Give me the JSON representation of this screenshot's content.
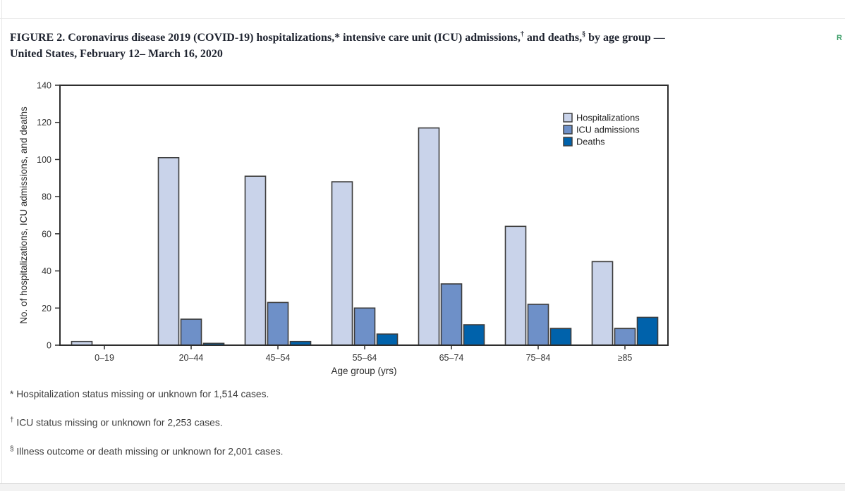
{
  "page": {
    "return_link_text": "R"
  },
  "title": {
    "parts": [
      {
        "t": "FIGURE 2. Coronavirus disease 2019 (COVID-19) hospitalizations,* intensive care unit (ICU) admissions,"
      },
      {
        "t": "†",
        "sup": true
      },
      {
        "t": " and deaths,"
      },
      {
        "t": "§",
        "sup": true
      },
      {
        "t": " by age group — "
      },
      {
        "t": "United States, February 12– March 16, 2020"
      }
    ]
  },
  "chart_data": {
    "type": "bar",
    "categories": [
      "0–19",
      "20–44",
      "45–54",
      "55–64",
      "65–74",
      "75–84",
      "≥85"
    ],
    "series": [
      {
        "name": "Hospitalizations",
        "color": "#c9d3ea",
        "values": [
          2,
          101,
          91,
          88,
          117,
          64,
          45
        ]
      },
      {
        "name": "ICU admissions",
        "color": "#6e90c8",
        "values": [
          0,
          14,
          23,
          20,
          33,
          22,
          9
        ]
      },
      {
        "name": "Deaths",
        "color": "#0062ab",
        "values": [
          0,
          1,
          2,
          6,
          11,
          9,
          15
        ]
      }
    ],
    "xlabel": "Age group (yrs)",
    "ylabel": "No. of hospitalizations, ICU admissions, and deaths",
    "ylim": [
      0,
      140
    ],
    "ytick_interval": 20,
    "grid": false,
    "legend_position": "top-right-inside",
    "bar_outline_color": "#3c3c3c",
    "axis_color": "#2e2e2e"
  },
  "footnotes": [
    {
      "symbol": "*",
      "text": " Hospitalization status missing or unknown for 1,514 cases."
    },
    {
      "symbol": "†",
      "text": " ICU status missing or unknown for 2,253 cases."
    },
    {
      "symbol": "§",
      "text": " Illness outcome or death missing or unknown for 2,001 cases."
    }
  ]
}
